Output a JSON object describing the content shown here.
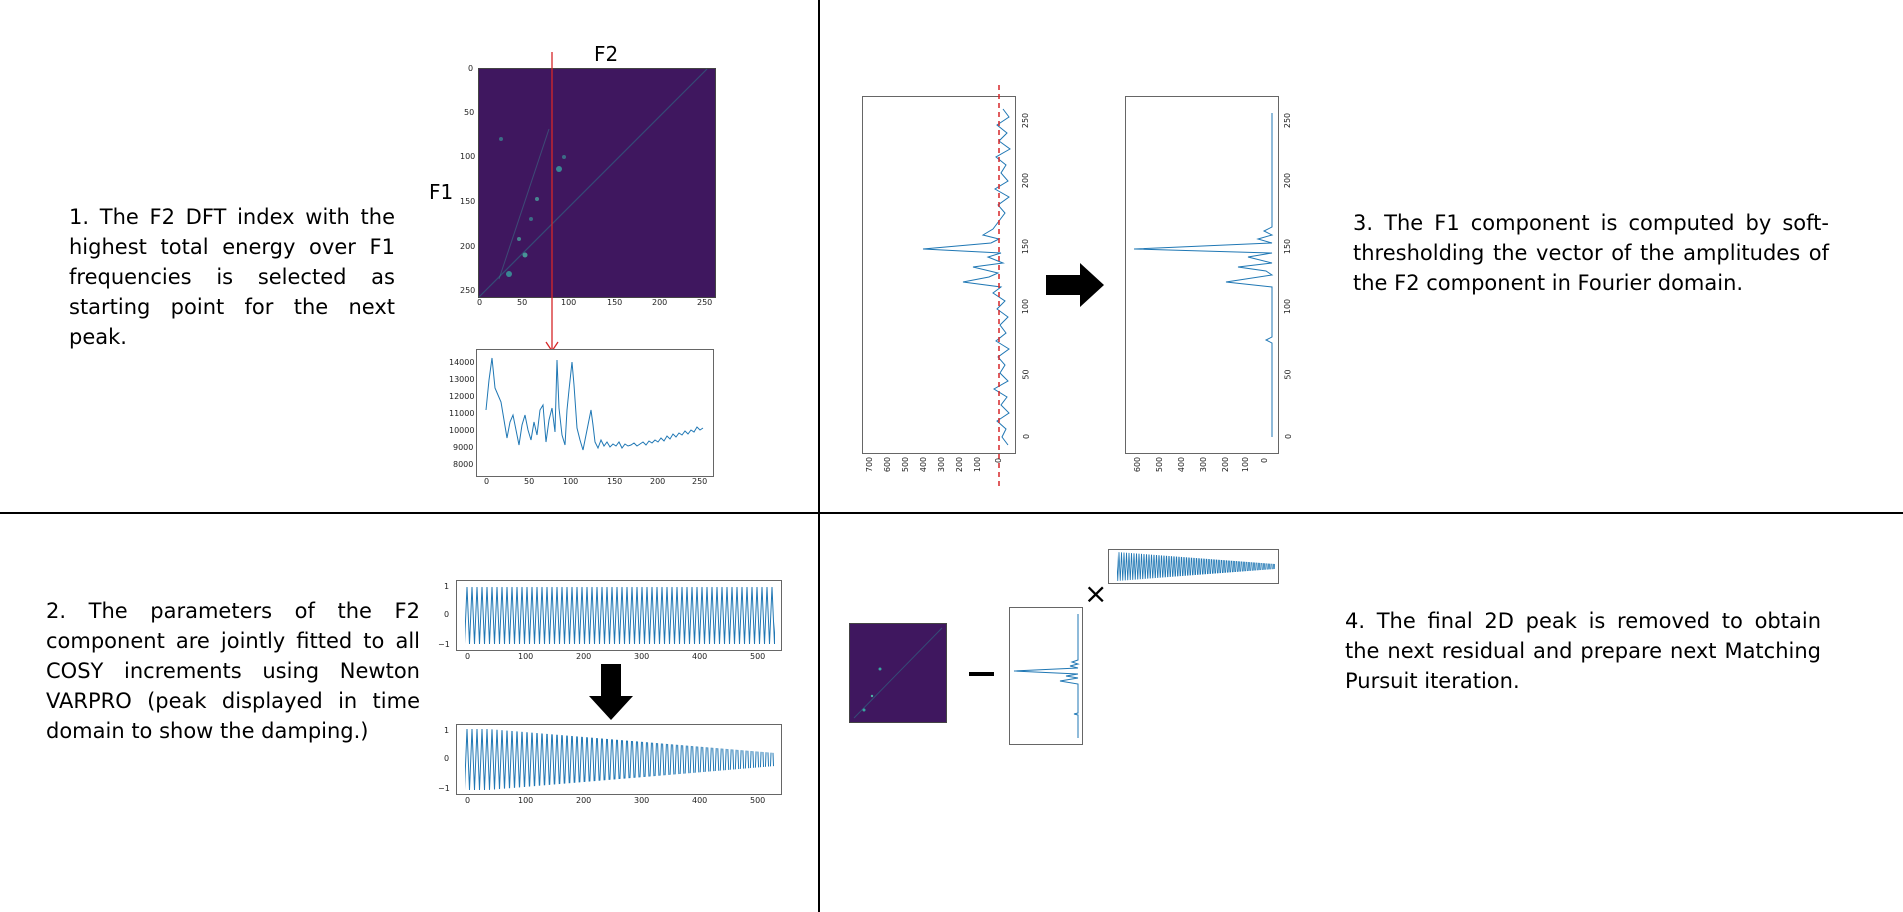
{
  "steps": {
    "step1": "1. The F2 DFT index with the highest total energy over F1 frequencies is selected as starting point for the next peak.",
    "step2": "2. The parameters of the F2 component are jointly fitted to all COSY increments using Newton VARPRO (peak displayed in time domain to show the damping.)",
    "step3": "3. The F1 component is computed by soft-thresholding the vector of the amplitudes of the F2 component in Fourier domain.",
    "step4": "4. The final 2D peak is removed to obtain the next residual and prepare next Matching Pursuit iteration."
  },
  "labels": {
    "f2": "F2",
    "f1": "F1",
    "times": "×"
  },
  "colors": {
    "line": "#1f77b4",
    "heatmap": "#3f175f",
    "marker": "#d62728"
  },
  "panel1": {
    "heatmap_ticks_x": [
      "0",
      "50",
      "100",
      "150",
      "200",
      "250"
    ],
    "heatmap_ticks_y": [
      "0",
      "50",
      "100",
      "150",
      "200",
      "250"
    ],
    "energy_ticks_x": [
      "0",
      "50",
      "100",
      "150",
      "200",
      "250"
    ],
    "energy_ticks_y": [
      "14000",
      "13000",
      "12000",
      "11000",
      "10000",
      "9000",
      "8000"
    ]
  },
  "panel2": {
    "ticks_x": [
      "0",
      "100",
      "200",
      "300",
      "400",
      "500"
    ],
    "ticks_y": [
      "1",
      "0",
      "−1"
    ]
  },
  "panel3": {
    "left_ticks_amp": [
      "700",
      "600",
      "500",
      "400",
      "300",
      "200",
      "100",
      "0"
    ],
    "right_ticks_amp": [
      "600",
      "500",
      "400",
      "300",
      "200",
      "100",
      "0"
    ],
    "ticks_index": [
      "250",
      "200",
      "150",
      "100",
      "50",
      "0"
    ]
  }
}
